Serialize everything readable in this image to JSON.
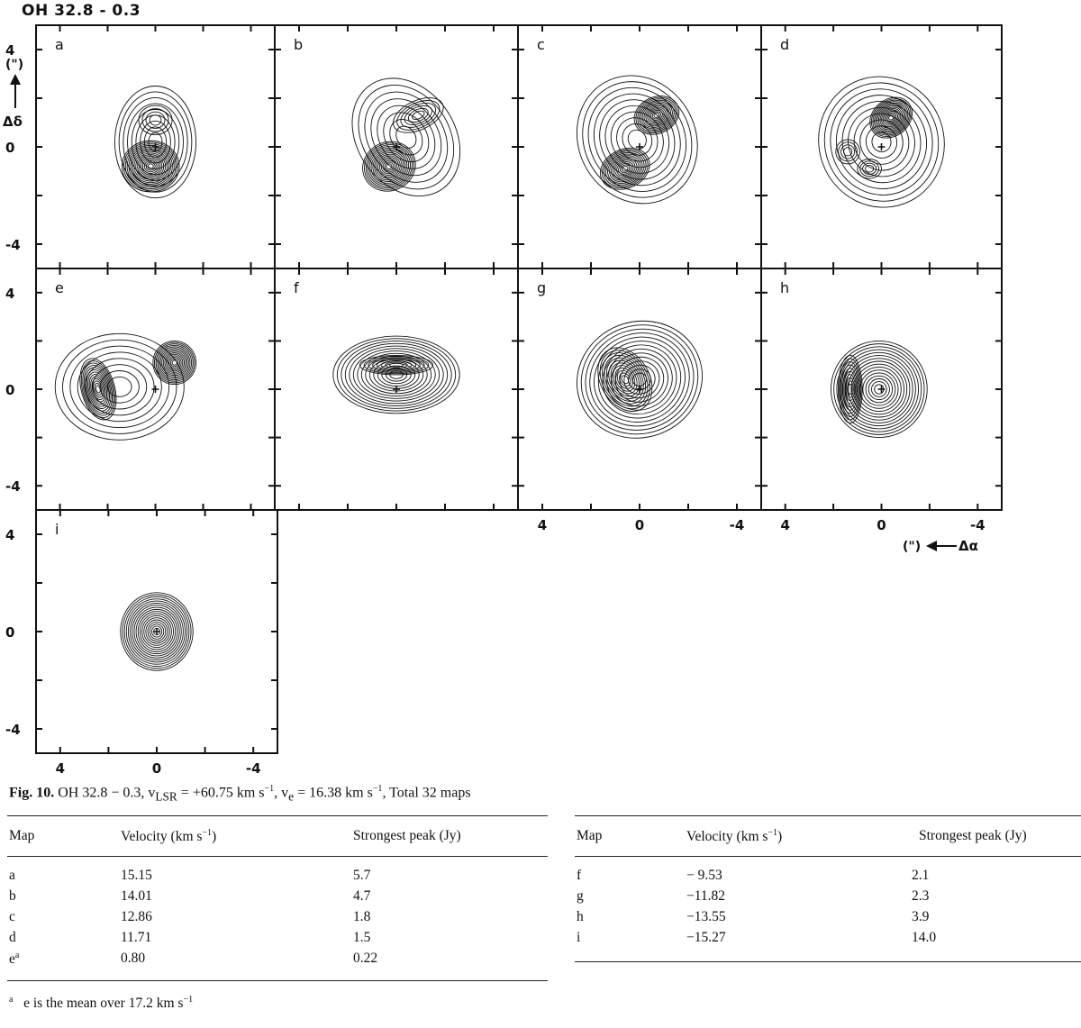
{
  "figure": {
    "title": "OH 32.8 - 0.3",
    "panel_labels": [
      "a",
      "b",
      "c",
      "d",
      "e",
      "f",
      "g",
      "h",
      "i"
    ],
    "y_ticks": [
      "4",
      "0",
      "-4"
    ],
    "x_ticks": [
      "4",
      "0",
      "-4"
    ],
    "y_axis_label": "(\") Δδ",
    "x_axis_label": "(\") Δα"
  },
  "caption": {
    "label": "Fig. 10.",
    "text": " OH 32.8 − 0.3, v",
    "vlsr_sub": "LSR",
    "vlsr_val": " = +60.75 km s",
    "ve_part": ", v",
    "ve_sub": "e",
    "ve_val": " = 16.38 km s",
    "exp": "−1",
    "tail": ", Total 32 maps"
  },
  "table": {
    "headers": [
      "Map",
      "Velocity (km s",
      "−1",
      ")",
      "Strongest peak (Jy)"
    ],
    "left_rows": [
      {
        "map": "a",
        "velocity": "15.15",
        "peak": "5.7"
      },
      {
        "map": "b",
        "velocity": "14.01",
        "peak": "4.7"
      },
      {
        "map": "c",
        "velocity": "12.86",
        "peak": "1.8"
      },
      {
        "map": "d",
        "velocity": "11.71",
        "peak": "1.5"
      },
      {
        "map": "e",
        "map_sup": "a",
        "velocity": "0.80",
        "peak": "0.22"
      }
    ],
    "right_rows": [
      {
        "map": "f",
        "velocity": "−  9.53",
        "peak": "2.1"
      },
      {
        "map": "g",
        "velocity": "−11.82",
        "peak": "2.3"
      },
      {
        "map": "h",
        "velocity": "−13.55",
        "peak": "3.9"
      },
      {
        "map": "i",
        "velocity": "−15.27",
        "peak": "14.0"
      }
    ]
  },
  "footnote": {
    "marker": "a",
    "text": "e is the mean over 17.2 km s",
    "exp": "−1"
  }
}
